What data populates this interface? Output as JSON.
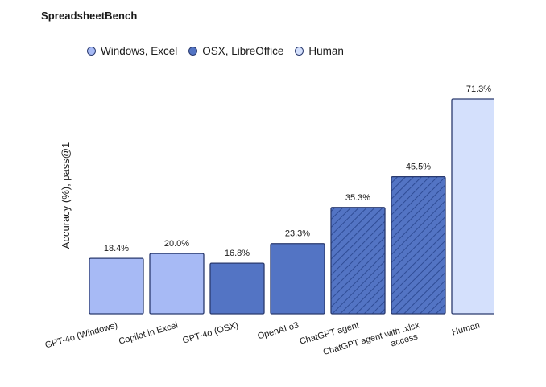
{
  "chart_data": {
    "type": "bar",
    "title": "SpreadsheetBench",
    "ylabel": "Accuracy (%), pass@1",
    "xlabel": "",
    "ylim": [
      0,
      71.3
    ],
    "legend": [
      {
        "name": "Windows, Excel",
        "color": "#a7baf5"
      },
      {
        "name": "OSX, LibreOffice",
        "color": "#5374c4"
      },
      {
        "name": "Human",
        "color": "#d4e0fc"
      }
    ],
    "categories": [
      [
        "GPT-4o (Windows)"
      ],
      [
        "Copilot in Excel"
      ],
      [
        "GPT-4o (OSX)"
      ],
      [
        "OpenAI o3"
      ],
      [
        "ChatGPT agent"
      ],
      [
        "ChatGPT agent with .xlsx",
        "access"
      ],
      [
        "Human"
      ]
    ],
    "values": [
      18.4,
      20.0,
      16.8,
      23.3,
      35.3,
      45.5,
      71.3
    ],
    "value_labels": [
      "18.4%",
      "20.0%",
      "16.8%",
      "23.3%",
      "35.3%",
      "45.5%",
      "71.3%"
    ],
    "groups": [
      "Windows, Excel",
      "Windows, Excel",
      "OSX, LibreOffice",
      "OSX, LibreOffice",
      "OSX, LibreOffice",
      "OSX, LibreOffice",
      "Human"
    ],
    "hatched": [
      false,
      false,
      false,
      false,
      true,
      true,
      false
    ],
    "grid": false
  }
}
